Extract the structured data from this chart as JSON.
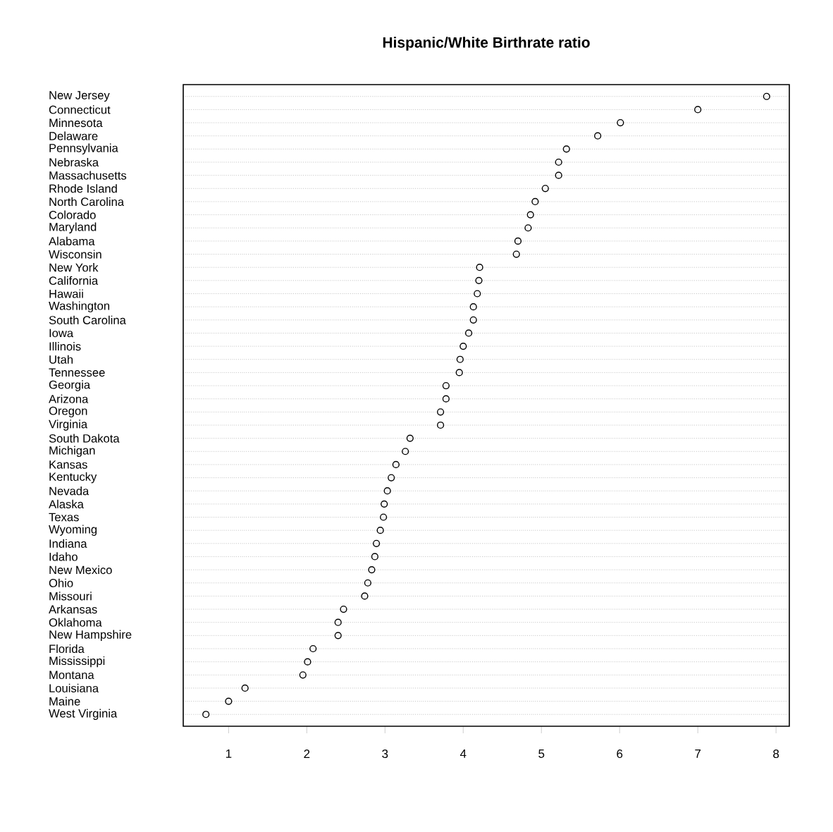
{
  "chart_data": {
    "type": "scatter",
    "orientation": "horizontal",
    "title": "Hispanic/White Birthrate ratio",
    "categories": [
      "New Jersey",
      "Connecticut",
      "Minnesota",
      "Delaware",
      "Pennsylvania",
      "Nebraska",
      "Massachusetts",
      "Rhode Island",
      "North Carolina",
      "Colorado",
      "Maryland",
      "Alabama",
      "Wisconsin",
      "New York",
      "California",
      "Hawaii",
      "Washington",
      "South Carolina",
      "Iowa",
      "Illinois",
      "Utah",
      "Tennessee",
      "Georgia",
      "Arizona",
      "Oregon",
      "Virginia",
      "South Dakota",
      "Michigan",
      "Kansas",
      "Kentucky",
      "Nevada",
      "Alaska",
      "Texas",
      "Wyoming",
      "Indiana",
      "Idaho",
      "New Mexico",
      "Ohio",
      "Missouri",
      "Arkansas",
      "Oklahoma",
      "New Hampshire",
      "Florida",
      "Mississippi",
      "Montana",
      "Louisiana",
      "Maine",
      "West Virginia"
    ],
    "values": [
      7.88,
      7.0,
      6.01,
      5.72,
      5.32,
      5.22,
      5.22,
      5.05,
      4.92,
      4.86,
      4.83,
      4.7,
      4.68,
      4.21,
      4.2,
      4.18,
      4.13,
      4.13,
      4.07,
      4.0,
      3.96,
      3.95,
      3.78,
      3.78,
      3.71,
      3.71,
      3.32,
      3.26,
      3.14,
      3.08,
      3.03,
      2.99,
      2.98,
      2.94,
      2.89,
      2.87,
      2.83,
      2.78,
      2.74,
      2.47,
      2.4,
      2.4,
      2.08,
      2.01,
      1.95,
      1.21,
      1.0,
      0.71
    ],
    "color": "#000000",
    "marker": "circle",
    "grid": "y",
    "xlim": [
      0.42,
      8.17
    ],
    "xticks": [
      1,
      2,
      3,
      4,
      5,
      6,
      7,
      8
    ]
  }
}
